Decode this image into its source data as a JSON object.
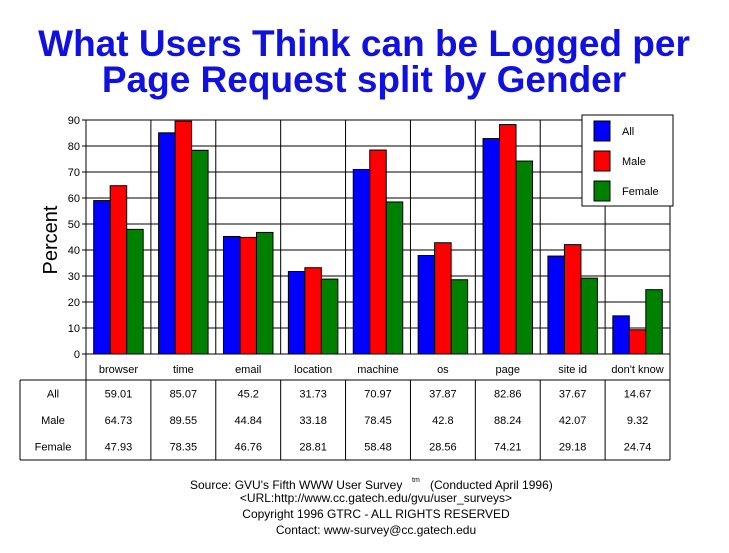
{
  "title_line1": "What Users Think can be Logged per",
  "title_line2": "Page Request split by Gender",
  "chart_data": {
    "type": "bar",
    "ylabel": "Percent",
    "ylim": [
      0,
      90
    ],
    "yticks": [
      0,
      10,
      20,
      30,
      40,
      50,
      60,
      70,
      80,
      90
    ],
    "grid": true,
    "legend_position": "top-right",
    "categories": [
      "browser",
      "time",
      "email",
      "location",
      "machine",
      "os",
      "page",
      "site id",
      "don't know"
    ],
    "series": [
      {
        "name": "All",
        "color": "#0000ff",
        "values": [
          59.01,
          85.07,
          45.2,
          31.73,
          70.97,
          37.87,
          82.86,
          37.67,
          14.67
        ],
        "labels": [
          "59.01",
          "85.07",
          "45.2",
          "31.73",
          "70.97",
          "37.87",
          "82.86",
          "37.67",
          "14.67"
        ]
      },
      {
        "name": "Male",
        "color": "#ff0000",
        "values": [
          64.73,
          89.55,
          44.84,
          33.18,
          78.45,
          42.8,
          88.24,
          42.07,
          9.32
        ],
        "labels": [
          "64.73",
          "89.55",
          "44.84",
          "33.18",
          "78.45",
          "42.8",
          "88.24",
          "42.07",
          "9.32"
        ]
      },
      {
        "name": "Female",
        "color": "#008000",
        "values": [
          47.93,
          78.35,
          46.76,
          28.81,
          58.48,
          28.56,
          74.21,
          29.18,
          24.74
        ],
        "labels": [
          "47.93",
          "78.35",
          "46.76",
          "28.81",
          "58.48",
          "28.56",
          "74.21",
          "29.18",
          "24.74"
        ]
      }
    ]
  },
  "footer": {
    "source": "Source: GVU's Fifth WWW User Survey",
    "tm": "tm",
    "conducted": "(Conducted April 1996)",
    "url": "<URL:http://www.cc.gatech.edu/gvu/user_surveys>",
    "copyright": "Copyright 1996 GTRC -  ALL RIGHTS RESERVED",
    "contact": "Contact: www-survey@cc.gatech.edu"
  }
}
